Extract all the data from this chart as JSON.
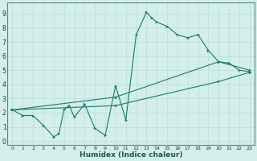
{
  "xlabel": "Humidex (Indice chaleur)",
  "xlim": [
    -0.5,
    23.5
  ],
  "ylim": [
    -0.3,
    9.8
  ],
  "xticks": [
    0,
    1,
    2,
    3,
    4,
    5,
    6,
    7,
    8,
    9,
    10,
    11,
    12,
    13,
    14,
    15,
    16,
    17,
    18,
    19,
    20,
    21,
    22,
    23
  ],
  "yticks": [
    0,
    1,
    2,
    3,
    4,
    5,
    6,
    7,
    8,
    9
  ],
  "line_color": "#1a7a6e",
  "bg_color": "#d4eeea",
  "grid_color": "#b8ddd8",
  "series1": [
    [
      0,
      2.2
    ],
    [
      1,
      1.8
    ],
    [
      2,
      1.8
    ],
    [
      3,
      1.1
    ],
    [
      4,
      0.3
    ],
    [
      4.5,
      0.5
    ],
    [
      5,
      2.2
    ],
    [
      5.5,
      2.5
    ],
    [
      6,
      1.7
    ],
    [
      7,
      2.6
    ],
    [
      8,
      0.9
    ],
    [
      9,
      0.4
    ],
    [
      10,
      3.9
    ],
    [
      11,
      1.5
    ],
    [
      12,
      7.5
    ],
    [
      13,
      9.1
    ],
    [
      13.5,
      8.7
    ],
    [
      14,
      8.4
    ],
    [
      15,
      8.1
    ],
    [
      16,
      7.5
    ],
    [
      17,
      7.3
    ],
    [
      18,
      7.5
    ],
    [
      19,
      6.4
    ],
    [
      20,
      5.6
    ],
    [
      21,
      5.5
    ],
    [
      22,
      5.0
    ],
    [
      23,
      4.9
    ]
  ],
  "series2": [
    [
      0,
      2.2
    ],
    [
      10,
      3.1
    ],
    [
      20,
      5.6
    ],
    [
      23,
      5.0
    ]
  ],
  "series3": [
    [
      0,
      2.2
    ],
    [
      10,
      2.5
    ],
    [
      20,
      4.2
    ],
    [
      23,
      4.85
    ]
  ]
}
